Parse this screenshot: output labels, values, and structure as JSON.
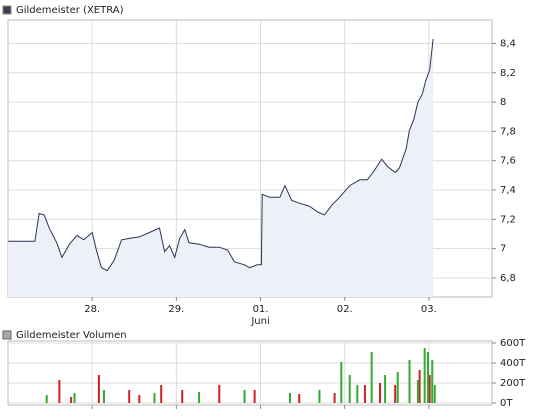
{
  "chart_data": [
    {
      "type": "area",
      "title": "Gildemeister (XETRA)",
      "color": "#2a3356",
      "fill_color": "#eef0f8",
      "grid": true,
      "x": [
        0,
        0.32,
        0.37,
        0.43,
        0.49,
        0.58,
        0.64,
        0.73,
        0.82,
        0.9,
        1.0,
        1.05,
        1.11,
        1.18,
        1.26,
        1.35,
        1.44,
        1.56,
        1.68,
        1.8,
        1.86,
        1.92,
        1.98,
        2.04,
        2.1,
        2.15,
        2.27,
        2.39,
        2.51,
        2.61,
        2.69,
        2.81,
        2.87,
        2.96,
        3.01,
        3.02,
        3.11,
        3.23,
        3.29,
        3.37,
        3.46,
        3.58,
        3.68,
        3.76,
        3.85,
        3.94,
        4.06,
        4.18,
        4.27,
        4.36,
        4.44,
        4.51,
        4.6,
        4.65,
        4.73,
        4.77,
        4.82,
        4.87,
        4.92,
        4.96,
        5.01,
        5.05
      ],
      "values": [
        7.05,
        7.05,
        7.24,
        7.23,
        7.14,
        7.04,
        6.94,
        7.03,
        7.09,
        7.06,
        7.11,
        6.99,
        6.87,
        6.85,
        6.92,
        7.06,
        7.07,
        7.08,
        7.11,
        7.14,
        6.98,
        7.02,
        6.94,
        7.07,
        7.13,
        7.04,
        7.03,
        7.01,
        7.01,
        6.99,
        6.91,
        6.89,
        6.87,
        6.89,
        6.89,
        7.37,
        7.35,
        7.35,
        7.43,
        7.33,
        7.31,
        7.29,
        7.25,
        7.23,
        7.3,
        7.35,
        7.43,
        7.47,
        7.47,
        7.54,
        7.61,
        7.56,
        7.52,
        7.55,
        7.68,
        7.81,
        7.88,
        8.0,
        8.05,
        8.14,
        8.22,
        8.43
      ],
      "xlim": [
        0,
        5.75
      ],
      "xticks": [
        {
          "value": 1,
          "label": "28."
        },
        {
          "value": 2,
          "label": "29."
        },
        {
          "value": 3,
          "label": "01."
        },
        {
          "value": 4,
          "label": "02."
        },
        {
          "value": 5,
          "label": "03."
        }
      ],
      "x_sublabels": [
        {
          "value": 3,
          "label": "Juni"
        }
      ],
      "ylim": [
        6.67,
        8.56
      ],
      "yticks": [
        {
          "value": 6.8,
          "label": "6,8"
        },
        7,
        {
          "value": 7.2,
          "label": "7,2"
        },
        {
          "value": 7.4,
          "label": "7,4"
        },
        {
          "value": 7.6,
          "label": "7,6"
        },
        {
          "value": 7.8,
          "label": "7,8"
        },
        8,
        {
          "value": 8.2,
          "label": "8,2"
        },
        {
          "value": 8.4,
          "label": "8,4"
        }
      ]
    },
    {
      "type": "bar",
      "title": "Gildemeister Volumen",
      "grid": true,
      "show_xtick_labels": false,
      "series": [
        {
          "color": "#cc2222",
          "x": [
            0.61,
            0.75,
            1.08,
            1.44,
            1.56,
            1.82,
            2.07,
            2.51,
            2.93,
            3.46,
            3.88,
            4.24,
            4.42,
            4.6,
            4.89,
            5.01
          ],
          "values": [
            230000,
            60000,
            280000,
            130000,
            80000,
            180000,
            130000,
            180000,
            130000,
            90000,
            100000,
            180000,
            200000,
            180000,
            330000,
            280000
          ]
        },
        {
          "color": "#33aa33",
          "x": [
            0.46,
            0.79,
            1.14,
            1.74,
            2.27,
            2.81,
            3.35,
            3.7,
            3.96,
            4.06,
            4.15,
            4.32,
            4.48,
            4.63,
            4.77,
            4.87,
            4.95,
            4.99,
            5.04,
            5.07
          ],
          "values": [
            80000,
            100000,
            130000,
            100000,
            110000,
            130000,
            100000,
            130000,
            410000,
            280000,
            180000,
            510000,
            280000,
            310000,
            430000,
            230000,
            550000,
            510000,
            430000,
            180000
          ]
        }
      ],
      "xlim": [
        0,
        5.75
      ],
      "xticks": [
        1,
        2,
        3,
        4,
        5
      ],
      "ylim": [
        -20000,
        620000
      ],
      "yticks": [
        {
          "value": 0,
          "label": "0T"
        },
        {
          "value": 200000,
          "label": "200T"
        },
        {
          "value": 400000,
          "label": "400T"
        },
        {
          "value": 600000,
          "label": "600T"
        }
      ]
    }
  ]
}
